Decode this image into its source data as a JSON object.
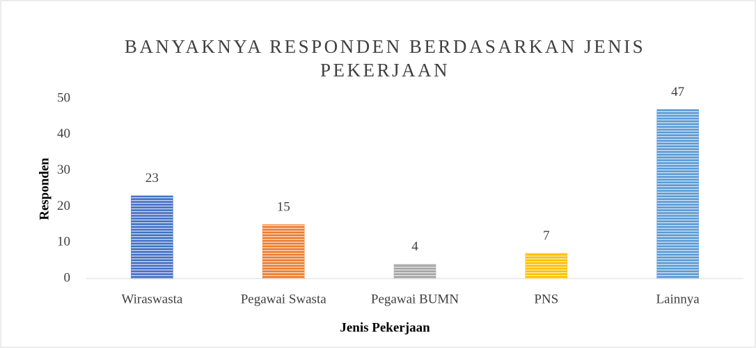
{
  "chart_data": {
    "type": "bar",
    "title": "BANYAKNYA RESPONDEN BERDASARKAN JENIS PEKERJAAN",
    "x_label": "Jenis Pekerjaan",
    "y_label": "Responden",
    "categories": [
      "Wiraswasta",
      "Pegawai Swasta",
      "Pegawai BUMN",
      "PNS",
      "Lainnya"
    ],
    "values": [
      23,
      15,
      4,
      7,
      47
    ],
    "colors": [
      "#4472c4",
      "#ed7d31",
      "#a5a5a5",
      "#ffc000",
      "#5b9bd5"
    ],
    "ylim": [
      0,
      50
    ],
    "yticks": [
      0,
      10,
      20,
      30,
      40,
      50
    ],
    "grid": false
  }
}
